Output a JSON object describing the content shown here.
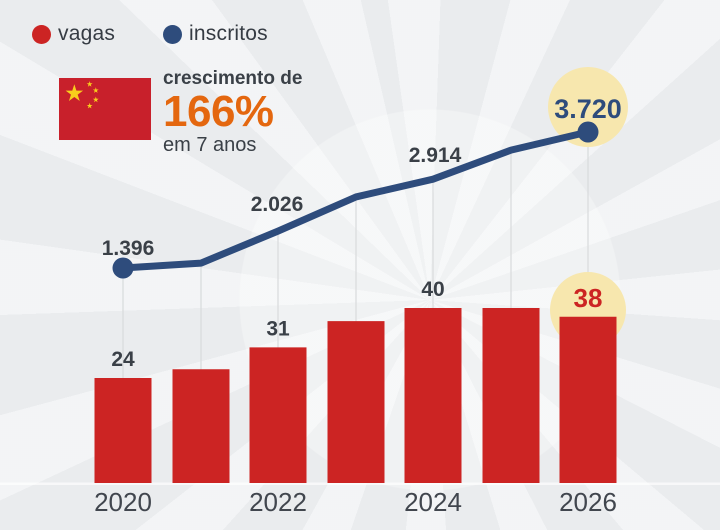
{
  "legend": {
    "items": [
      {
        "label": "vagas",
        "color": "#cc2423"
      },
      {
        "label": "inscritos",
        "color": "#2e4c7c"
      }
    ]
  },
  "growth": {
    "prefix": "crescimento de",
    "value": "166%",
    "suffix": "em 7 anos",
    "value_color": "#e4670f",
    "flag": "bandeira-da-china"
  },
  "chart_data": {
    "type": "combo-bar-line",
    "x": [
      "2020",
      "2021",
      "2022",
      "2023",
      "2024",
      "2025",
      "2026"
    ],
    "x_axis_labels_shown": [
      "2020",
      "2022",
      "2024",
      "2026"
    ],
    "grid": "vertical connector lines from line points to baseline, no y-axis",
    "legend_position": "top-left",
    "series": [
      {
        "name": "vagas",
        "type": "bar",
        "color": "#cc2423",
        "values": [
          24,
          26,
          31,
          37,
          40,
          40,
          38
        ],
        "labels": [
          "24",
          null,
          "31",
          null,
          "40",
          null,
          "38"
        ],
        "estimated": [
          false,
          true,
          false,
          true,
          false,
          true,
          false
        ]
      },
      {
        "name": "inscritos",
        "type": "line",
        "color": "#2e4c7c",
        "values": [
          1396,
          1480,
          2026,
          2610,
          2914,
          3410,
          3720
        ],
        "labels": [
          "1.396",
          null,
          "2.026",
          null,
          "2.914",
          null,
          "3.720"
        ],
        "estimated": [
          false,
          true,
          false,
          true,
          false,
          true,
          false
        ]
      }
    ],
    "highlights": [
      {
        "x": "2026",
        "series": "inscritos",
        "label": "3.720",
        "color": "#f7e7ae"
      },
      {
        "x": "2026",
        "series": "vagas",
        "label": "38",
        "color": "#f7e7ae"
      }
    ],
    "annotation": "crescimento de 166% em 7 anos",
    "text_color": "#3a4047",
    "gridline_color": "#d8dadc"
  }
}
